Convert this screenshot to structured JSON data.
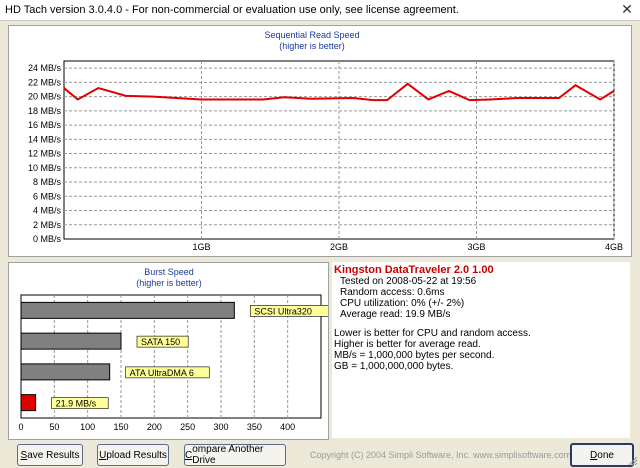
{
  "window": {
    "title": "HD Tach version 3.0.4.0  - For non-commercial or evaluation use only, see license agreement.",
    "close_glyph": "✕"
  },
  "seq_chart": {
    "chart_data": {
      "type": "line",
      "title": "Sequential Read Speed",
      "subtitle": "(higher is better)",
      "ytick_labels": [
        "0 MB/s",
        "2 MB/s",
        "4 MB/s",
        "6 MB/s",
        "8 MB/s",
        "10 MB/s",
        "12 MB/s",
        "14 MB/s",
        "16 MB/s",
        "18 MB/s",
        "20 MB/s",
        "22 MB/s",
        "24 MB/s"
      ],
      "xtick_labels": [
        "1GB",
        "2GB",
        "3GB",
        "4GB"
      ],
      "ylim": [
        0,
        25
      ],
      "xlim": [
        0,
        4
      ],
      "grid": true,
      "series": [
        {
          "color": "#e00000",
          "x": [
            0,
            0.1,
            0.25,
            0.45,
            0.65,
            1.0,
            1.45,
            1.6,
            1.8,
            2.1,
            2.25,
            2.35,
            2.5,
            2.65,
            2.8,
            2.95,
            3.1,
            3.3,
            3.6,
            3.72,
            3.9,
            4.0
          ],
          "y": [
            21.2,
            19.6,
            21.2,
            20.1,
            20.0,
            19.6,
            19.6,
            19.9,
            19.7,
            19.8,
            19.5,
            19.5,
            21.8,
            19.6,
            20.8,
            19.5,
            19.6,
            19.8,
            19.8,
            21.6,
            19.6,
            20.8
          ]
        }
      ]
    }
  },
  "burst_chart": {
    "chart_data": {
      "type": "bar",
      "title": "Burst Speed",
      "subtitle": "(higher is better)",
      "orientation": "horizontal",
      "xlim": [
        0,
        450
      ],
      "xtick_labels": [
        "0",
        "50",
        "100",
        "150",
        "200",
        "250",
        "300",
        "350",
        "400"
      ],
      "grid": true,
      "categories": [
        "SCSI Ultra320",
        "SATA 150",
        "ATA UltraDMA 6",
        "21.9 MB/s"
      ],
      "values": [
        320,
        150,
        133,
        21.9
      ],
      "colors": [
        "#808080",
        "#808080",
        "#808080",
        "#e00000"
      ],
      "label_bg": "#ffff99"
    }
  },
  "info": {
    "drive_name": "Kingston DataTraveler 2.0 1.00",
    "tested_on": "Tested on 2008-05-22 at 19:56",
    "random_access": "Random access: 0.6ms",
    "cpu_util": "CPU utilization: 0% (+/- 2%)",
    "avg_read": "Average read: 19.9 MB/s",
    "notes": [
      "Lower is better for CPU and random access.",
      "Higher is better for average read.",
      "MB/s = 1,000,000 bytes per second.",
      "GB = 1,000,000,000 bytes."
    ],
    "accent": "#cc0000"
  },
  "buttons": {
    "save": {
      "key": "S",
      "rest": "ave Results"
    },
    "upload": {
      "key": "U",
      "rest": "pload Results"
    },
    "compare": {
      "key": "C",
      "rest": "ompare Another Drive"
    },
    "done": {
      "key": "D",
      "rest": "one"
    }
  },
  "footer": {
    "copyright": "Copyright (C) 2004 Simpli Software, Inc. www.simplisoftware.com"
  }
}
